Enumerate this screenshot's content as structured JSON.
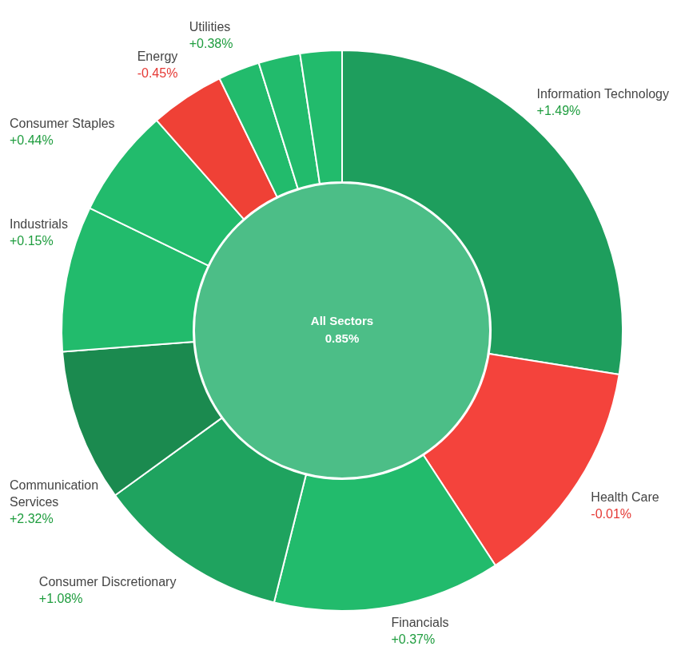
{
  "chart_data": {
    "type": "doughnut",
    "categories": [
      "Information Technology",
      "Health Care",
      "Financials",
      "Consumer Discretionary",
      "Communication Services",
      "Industrials",
      "Consumer Staples",
      "Energy",
      "Utilities",
      null,
      null
    ],
    "values": [
      27.5,
      13.3,
      13.1,
      11.1,
      8.8,
      8.4,
      6.3,
      4.3,
      2.4,
      2.4,
      2.4
    ],
    "changes": [
      1.49,
      -0.01,
      0.37,
      1.08,
      2.32,
      0.15,
      0.44,
      -0.45,
      0.38,
      null,
      null
    ],
    "change_labels": [
      "+1.49%",
      "-0.01%",
      "+0.37%",
      "+1.08%",
      "+2.32%",
      "+0.15%",
      "+0.44%",
      "-0.45%",
      "+0.38%",
      null,
      null
    ],
    "colors": [
      "#1e9e5d",
      "#f4433c",
      "#22bb6c",
      "#1fa35f",
      "#1b8a4f",
      "#22bb6c",
      "#22bb6c",
      "#ef4136",
      "#22bb6c",
      "#22bb6c",
      "#22bb6c"
    ],
    "center": {
      "label": "All Sectors",
      "value": 0.85,
      "value_label": "0.85%"
    }
  }
}
